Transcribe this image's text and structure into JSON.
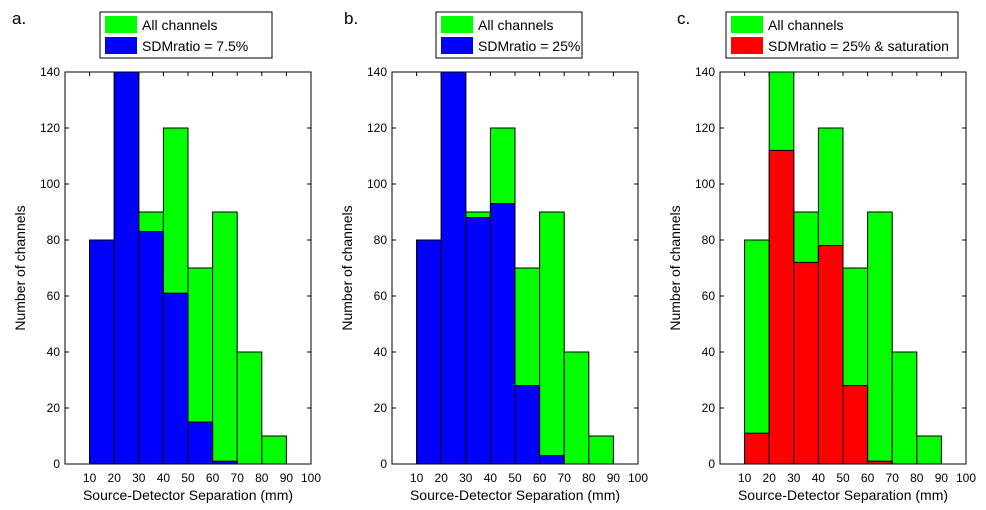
{
  "chart_data": [
    {
      "type": "bar",
      "panel_label": "a.",
      "xlabel": "Source-Detector Separation (mm)",
      "ylabel": "Number of channels",
      "xlim": [
        0,
        100
      ],
      "ylim": [
        0,
        140
      ],
      "xticks": [
        10,
        20,
        30,
        40,
        50,
        60,
        70,
        80,
        90,
        100
      ],
      "yticks": [
        0,
        20,
        40,
        60,
        80,
        100,
        120,
        140
      ],
      "bin_edges": [
        10,
        20,
        30,
        40,
        50,
        60,
        70,
        80,
        90
      ],
      "legend": "top",
      "series": [
        {
          "name": "All channels",
          "color": "#00ff00",
          "values": [
            80,
            140,
            90,
            120,
            70,
            90,
            40,
            10
          ]
        },
        {
          "name": "SDMratio = 7.5%",
          "color": "#0000ff",
          "values": [
            80,
            140,
            83,
            61,
            15,
            1,
            0,
            0
          ]
        }
      ]
    },
    {
      "type": "bar",
      "panel_label": "b.",
      "xlabel": "Source-Detector Separation (mm)",
      "ylabel": "Number of channels",
      "xlim": [
        0,
        100
      ],
      "ylim": [
        0,
        140
      ],
      "xticks": [
        10,
        20,
        30,
        40,
        50,
        60,
        70,
        80,
        90,
        100
      ],
      "yticks": [
        0,
        20,
        40,
        60,
        80,
        100,
        120,
        140
      ],
      "bin_edges": [
        10,
        20,
        30,
        40,
        50,
        60,
        70,
        80,
        90
      ],
      "legend": "top",
      "series": [
        {
          "name": "All channels",
          "color": "#00ff00",
          "values": [
            80,
            140,
            90,
            120,
            70,
            90,
            40,
            10
          ]
        },
        {
          "name": "SDMratio = 25%",
          "color": "#0000ff",
          "values": [
            80,
            140,
            88,
            93,
            28,
            3,
            0,
            0
          ]
        }
      ]
    },
    {
      "type": "bar",
      "panel_label": "c.",
      "xlabel": "Source-Detector Separation (mm)",
      "ylabel": "Number of channels",
      "xlim": [
        0,
        100
      ],
      "ylim": [
        0,
        140
      ],
      "xticks": [
        10,
        20,
        30,
        40,
        50,
        60,
        70,
        80,
        90,
        100
      ],
      "yticks": [
        0,
        20,
        40,
        60,
        80,
        100,
        120,
        140
      ],
      "bin_edges": [
        10,
        20,
        30,
        40,
        50,
        60,
        70,
        80,
        90
      ],
      "legend": "top",
      "series": [
        {
          "name": "All channels",
          "color": "#00ff00",
          "values": [
            80,
            140,
            90,
            120,
            70,
            90,
            40,
            10
          ]
        },
        {
          "name": "SDMratio = 25% & saturation",
          "color": "#ff0000",
          "values": [
            11,
            112,
            72,
            78,
            28,
            1,
            0,
            0
          ]
        }
      ]
    }
  ]
}
